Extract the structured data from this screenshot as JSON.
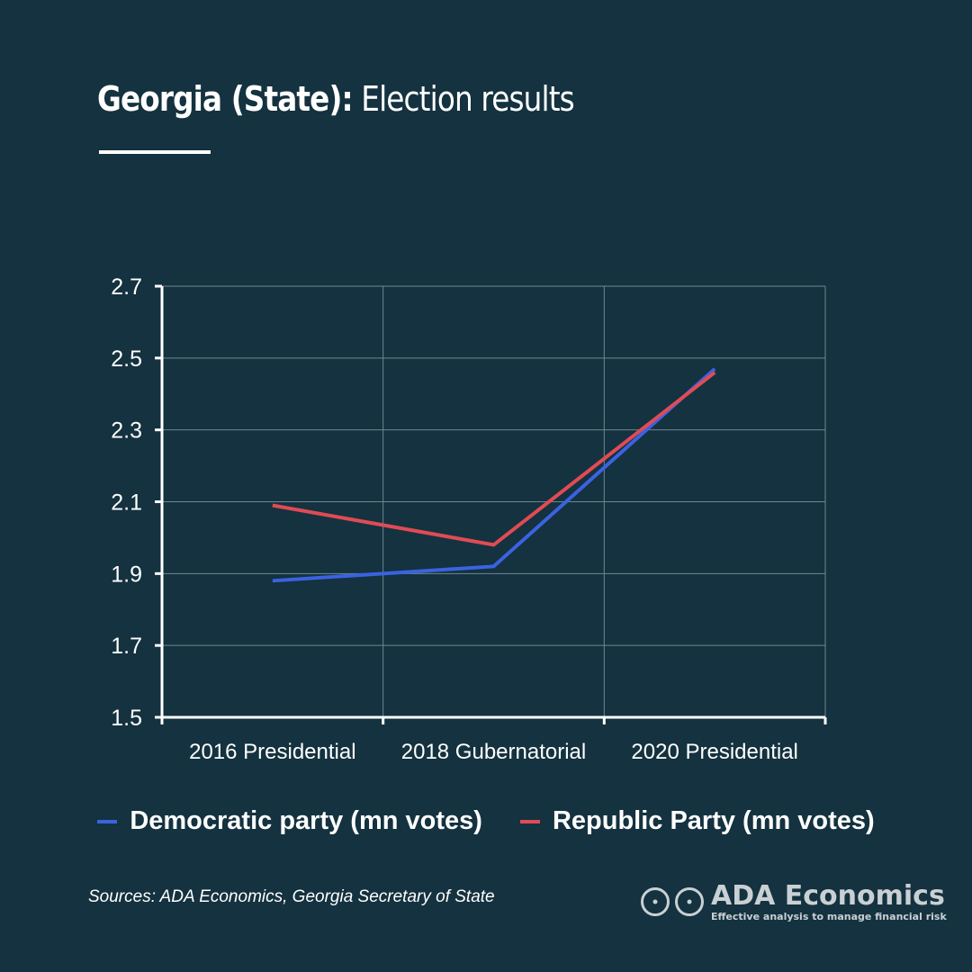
{
  "header": {
    "title_bold": "Georgia (State):",
    "title_light": "Election results"
  },
  "colors": {
    "background": "#14323f",
    "democratic": "#3b62e0",
    "republican": "#e04b55",
    "grid": "#6f8791",
    "axis": "#ffffff"
  },
  "chart_data": {
    "type": "line",
    "categories": [
      "2016 Presidential",
      "2018 Gubernatorial",
      "2020 Presidential"
    ],
    "series": [
      {
        "name": "Democratic party (mn votes)",
        "color": "#3b62e0",
        "values": [
          1.88,
          1.92,
          2.47
        ]
      },
      {
        "name": "Republic Party (mn votes)",
        "color": "#e04b55",
        "values": [
          2.09,
          1.98,
          2.46
        ]
      }
    ],
    "yticks": [
      1.5,
      1.7,
      1.9,
      2.1,
      2.3,
      2.5,
      2.7
    ],
    "ylim": [
      1.5,
      2.7
    ],
    "grid": true,
    "legend_position": "bottom-center"
  },
  "legend": {
    "democratic_label": "Democratic party (mn votes)",
    "republican_label": "Republic Party (mn votes)"
  },
  "footer": {
    "sources": "Sources: ADA Economics, Georgia Secretary of State",
    "brand_name": "ADA Economics",
    "brand_tagline": "Effective analysis to manage financial risk"
  }
}
